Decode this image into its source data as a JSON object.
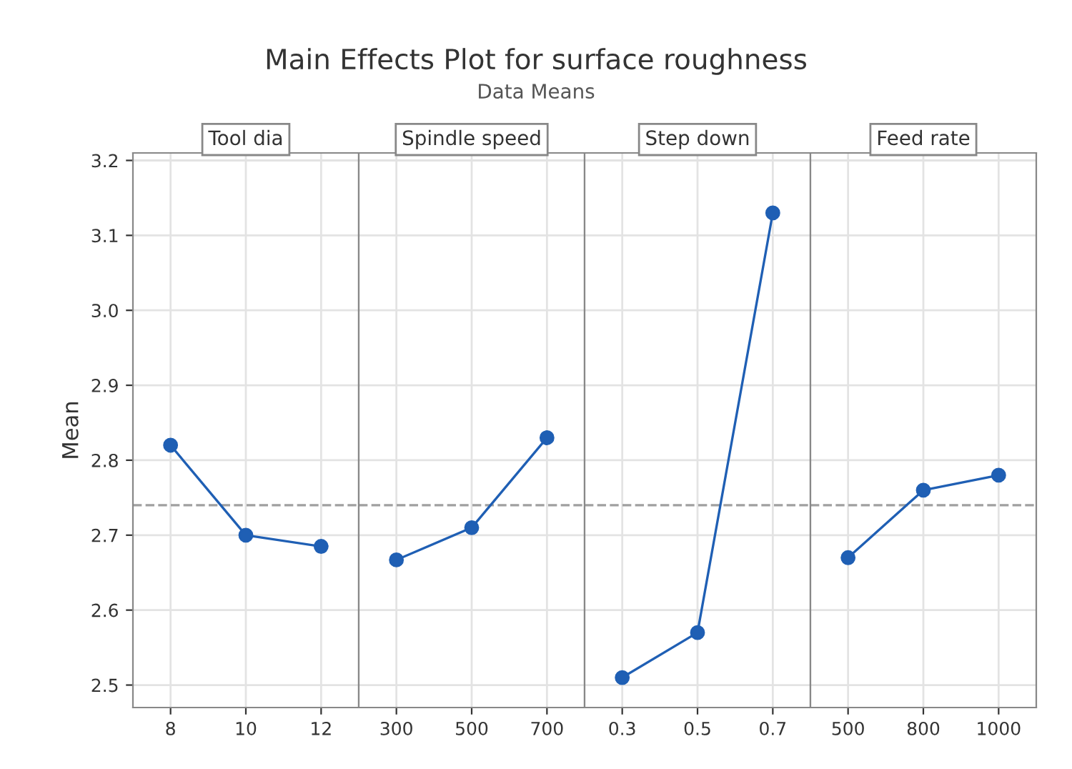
{
  "chart_data": [
    {
      "type": "other",
      "title": "Main Effects Plot for surface roughness",
      "subtitle": "Data Means"
    },
    {
      "type": "line",
      "title": "Tool dia",
      "ylabel": "Mean",
      "categories": [
        "8",
        "10",
        "12"
      ],
      "series": [
        {
          "color": "#1f5fb4",
          "values": [
            2.82,
            2.7,
            2.685
          ]
        }
      ],
      "ylim": [
        2.47,
        3.21
      ],
      "yticks": [
        2.5,
        2.6,
        2.7,
        2.8,
        2.9,
        {
          "value": 3,
          "label": "3.0"
        },
        3.1,
        3.2
      ],
      "grid": true,
      "marker": "circle",
      "line_style": "solid",
      "ref_lines": [
        {
          "axis": "y",
          "value": 2.74,
          "color": "#a0a0a0",
          "line_style": "dashed"
        }
      ]
    },
    {
      "type": "line",
      "title": "Spindle speed",
      "categories": [
        "300",
        "500",
        "700"
      ],
      "series": [
        {
          "color": "#1f5fb4",
          "values": [
            2.667,
            2.71,
            2.83
          ]
        }
      ],
      "ylim": [
        2.47,
        3.21
      ],
      "yticks": [
        2.5,
        2.6,
        2.7,
        2.8,
        2.9,
        3,
        3.1,
        3.2
      ],
      "tick_labels": "x",
      "grid": true,
      "marker": "circle",
      "line_style": "solid",
      "ref_lines": [
        {
          "axis": "y",
          "value": 2.74,
          "color": "#a0a0a0",
          "line_style": "dashed"
        }
      ]
    },
    {
      "type": "line",
      "title": "Step down",
      "categories": [
        "0.3",
        "0.5",
        "0.7"
      ],
      "series": [
        {
          "color": "#1f5fb4",
          "values": [
            2.51,
            2.57,
            3.13
          ]
        }
      ],
      "ylim": [
        2.47,
        3.21
      ],
      "yticks": [
        2.5,
        2.6,
        2.7,
        2.8,
        2.9,
        3,
        3.1,
        3.2
      ],
      "tick_labels": "x",
      "grid": true,
      "marker": "circle",
      "line_style": "solid",
      "ref_lines": [
        {
          "axis": "y",
          "value": 2.74,
          "color": "#a0a0a0",
          "line_style": "dashed"
        }
      ]
    },
    {
      "type": "line",
      "title": "Feed rate",
      "categories": [
        "500",
        "800",
        "1000"
      ],
      "series": [
        {
          "color": "#1f5fb4",
          "values": [
            2.67,
            2.76,
            2.78
          ]
        }
      ],
      "ylim": [
        2.47,
        3.21
      ],
      "yticks": [
        2.5,
        2.6,
        2.7,
        2.8,
        2.9,
        3,
        3.1,
        3.2
      ],
      "tick_labels": "x",
      "grid": true,
      "marker": "circle",
      "line_style": "solid",
      "ref_lines": [
        {
          "axis": "y",
          "value": 2.74,
          "color": "#a0a0a0",
          "line_style": "dashed"
        }
      ]
    }
  ]
}
